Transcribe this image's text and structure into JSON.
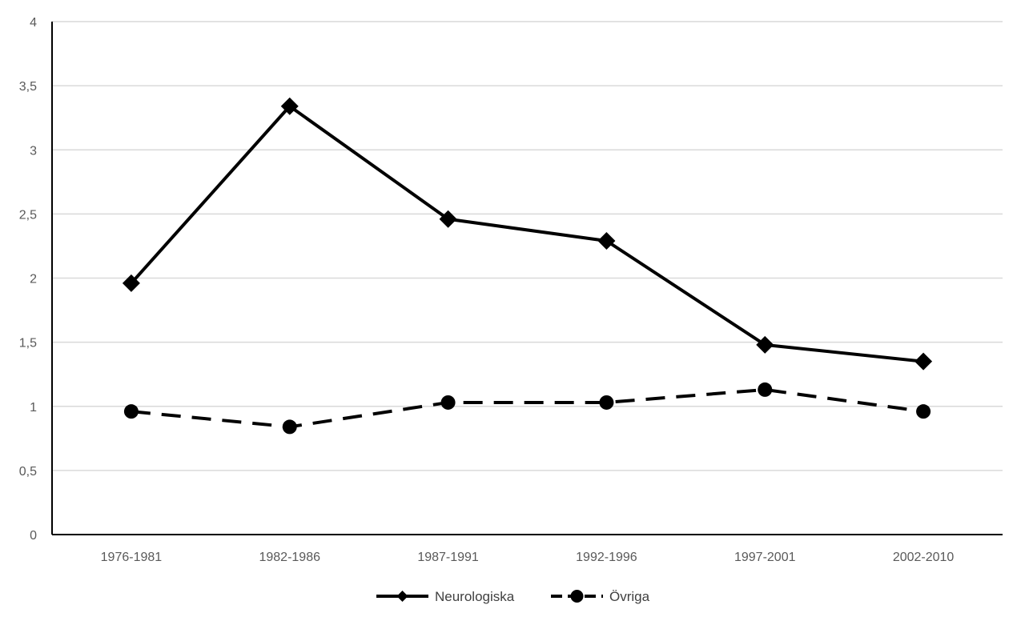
{
  "chart_data": {
    "type": "line",
    "categories": [
      "1976-1981",
      "1982-1986",
      "1987-1991",
      "1992-1996",
      "1997-2001",
      "2002-2010"
    ],
    "series": [
      {
        "name": "Neurologiska",
        "values": [
          1.96,
          3.34,
          2.46,
          2.29,
          1.48,
          1.35
        ],
        "line_style": "solid",
        "marker": "diamond",
        "color": "#000000"
      },
      {
        "name": "Övriga",
        "values": [
          0.96,
          0.84,
          1.03,
          1.03,
          1.13,
          0.96
        ],
        "line_style": "dashed",
        "marker": "circle",
        "color": "#000000"
      }
    ],
    "y_ticks": [
      "0",
      "0,5",
      "1",
      "1,5",
      "2",
      "2,5",
      "3",
      "3,5",
      "4"
    ],
    "ylim": [
      0,
      4
    ],
    "grid": true,
    "legend_position": "bottom"
  }
}
